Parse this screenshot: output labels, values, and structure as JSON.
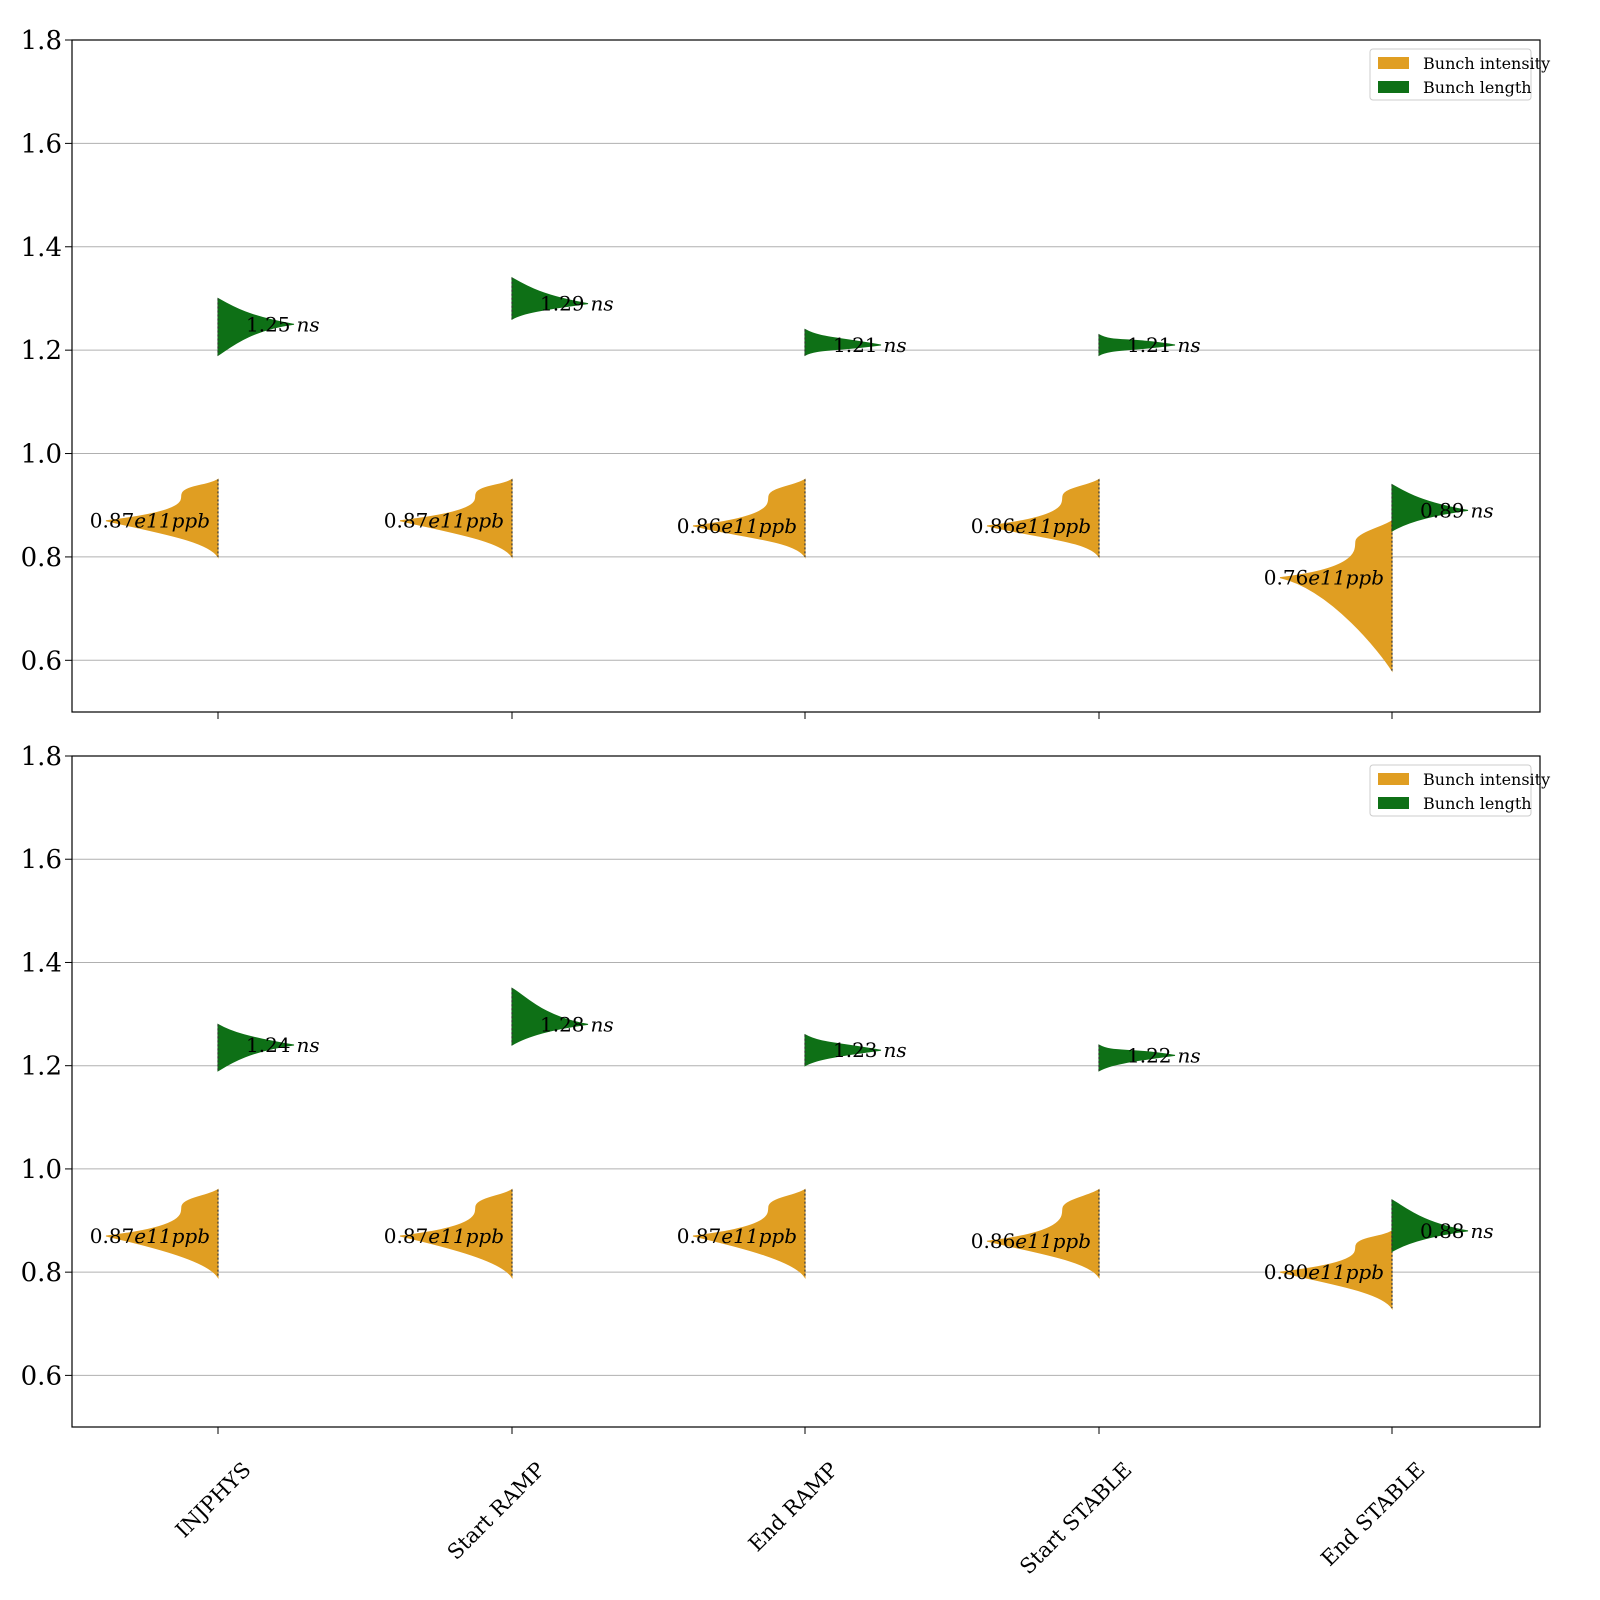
{
  "colors": {
    "intensity": "#E09E22",
    "length": "#0E7016",
    "grid": "#b0b0b0",
    "axis": "#000000"
  },
  "legend": {
    "placement": "top-right",
    "items": [
      "Bunch intensity",
      "Bunch length"
    ]
  },
  "chart_data": [
    {
      "type": "violin",
      "categories": [
        "INJPHYS",
        "Start RAMP",
        "End RAMP",
        "Start STABLE",
        "End STABLE"
      ],
      "ylim": [
        0.5,
        1.8
      ],
      "yticks": [
        "0.6",
        "0.8",
        "1.0",
        "1.2",
        "1.4",
        "1.6",
        "1.8"
      ],
      "grid": true,
      "xticklabels_shown": false,
      "series": [
        {
          "name": "Bunch intensity",
          "side": "left",
          "median": [
            0.87,
            0.87,
            0.86,
            0.86,
            0.76
          ],
          "range": [
            [
              0.8,
              0.95
            ],
            [
              0.8,
              0.95
            ],
            [
              0.8,
              0.95
            ],
            [
              0.8,
              0.95
            ],
            [
              0.58,
              0.87
            ]
          ],
          "labels": [
            {
              "num": "0.87",
              "unit": "e11ppb"
            },
            {
              "num": "0.87",
              "unit": "e11ppb"
            },
            {
              "num": "0.86",
              "unit": "e11ppb"
            },
            {
              "num": "0.86",
              "unit": "e11ppb"
            },
            {
              "num": "0.76",
              "unit": "e11ppb"
            }
          ]
        },
        {
          "name": "Bunch length",
          "side": "right",
          "median": [
            1.25,
            1.29,
            1.21,
            1.21,
            0.89
          ],
          "range": [
            [
              1.19,
              1.3
            ],
            [
              1.26,
              1.34
            ],
            [
              1.19,
              1.24
            ],
            [
              1.19,
              1.23
            ],
            [
              0.85,
              0.94
            ]
          ],
          "labels": [
            {
              "num": "1.25",
              "unit": "ns"
            },
            {
              "num": "1.29",
              "unit": "ns"
            },
            {
              "num": "1.21",
              "unit": "ns"
            },
            {
              "num": "1.21",
              "unit": "ns"
            },
            {
              "num": "0.89",
              "unit": "ns"
            }
          ]
        }
      ]
    },
    {
      "type": "violin",
      "categories": [
        "INJPHYS",
        "Start RAMP",
        "End RAMP",
        "Start STABLE",
        "End STABLE"
      ],
      "ylim": [
        0.5,
        1.8
      ],
      "yticks": [
        "0.6",
        "0.8",
        "1.0",
        "1.2",
        "1.4",
        "1.6",
        "1.8"
      ],
      "grid": true,
      "xticklabels_shown": true,
      "series": [
        {
          "name": "Bunch intensity",
          "side": "left",
          "median": [
            0.87,
            0.87,
            0.87,
            0.86,
            0.8
          ],
          "range": [
            [
              0.79,
              0.96
            ],
            [
              0.79,
              0.96
            ],
            [
              0.79,
              0.96
            ],
            [
              0.79,
              0.96
            ],
            [
              0.73,
              0.88
            ]
          ],
          "labels": [
            {
              "num": "0.87",
              "unit": "e11ppb"
            },
            {
              "num": "0.87",
              "unit": "e11ppb"
            },
            {
              "num": "0.87",
              "unit": "e11ppb"
            },
            {
              "num": "0.86",
              "unit": "e11ppb"
            },
            {
              "num": "0.80",
              "unit": "e11ppb"
            }
          ]
        },
        {
          "name": "Bunch length",
          "side": "right",
          "median": [
            1.24,
            1.28,
            1.23,
            1.22,
            0.88
          ],
          "range": [
            [
              1.19,
              1.28
            ],
            [
              1.24,
              1.35
            ],
            [
              1.2,
              1.26
            ],
            [
              1.19,
              1.24
            ],
            [
              0.84,
              0.94
            ]
          ],
          "labels": [
            {
              "num": "1.24",
              "unit": "ns"
            },
            {
              "num": "1.28",
              "unit": "ns"
            },
            {
              "num": "1.23",
              "unit": "ns"
            },
            {
              "num": "1.22",
              "unit": "ns"
            },
            {
              "num": "0.88",
              "unit": "ns"
            }
          ]
        }
      ]
    }
  ]
}
